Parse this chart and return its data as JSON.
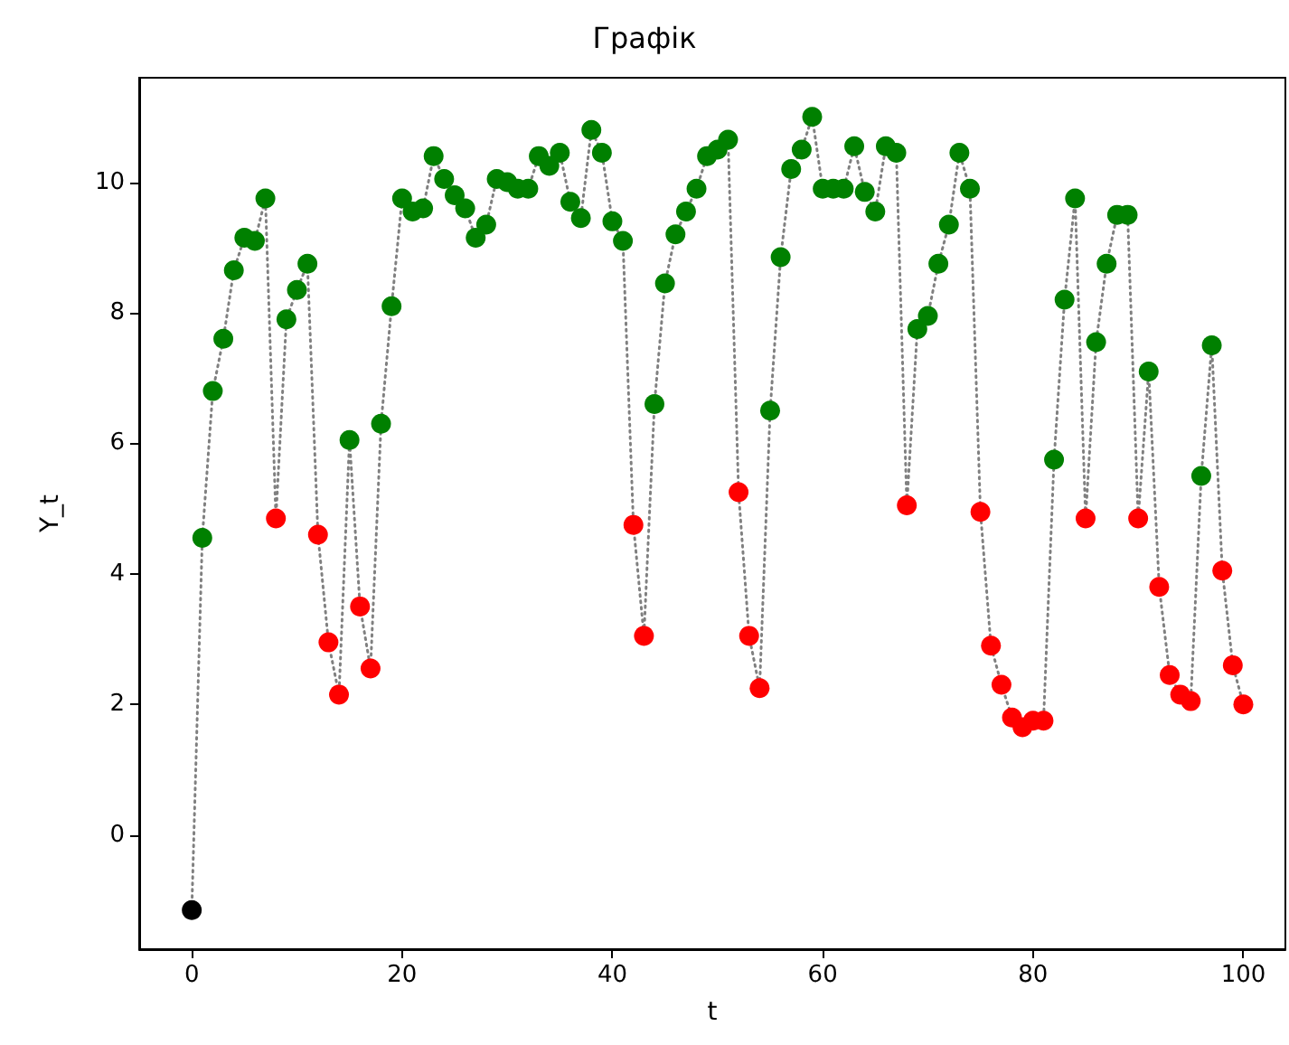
{
  "chart_data": {
    "type": "scatter",
    "title": "Графік",
    "xlabel": "t",
    "ylabel": "Y_t",
    "xlim": [
      -5,
      104
    ],
    "ylim": [
      -1.75,
      11.6
    ],
    "xticks": [
      0,
      20,
      40,
      60,
      80,
      100
    ],
    "yticks": [
      0,
      2,
      4,
      6,
      8,
      10
    ],
    "grid": false,
    "series": [
      {
        "type": "line",
        "color": "#808080",
        "line_style": "dotted",
        "marker": "none",
        "x": [
          0,
          1,
          2,
          3,
          4,
          5,
          6,
          7,
          8,
          9,
          10,
          11,
          12,
          13,
          14,
          15,
          16,
          17,
          18,
          19,
          20,
          21,
          22,
          23,
          24,
          25,
          26,
          27,
          28,
          29,
          30,
          31,
          32,
          33,
          34,
          35,
          36,
          37,
          38,
          39,
          40,
          41,
          42,
          43,
          44,
          45,
          46,
          47,
          48,
          49,
          50,
          51,
          52,
          53,
          54,
          55,
          56,
          57,
          58,
          59,
          60,
          61,
          62,
          63,
          64,
          65,
          66,
          67,
          68,
          69,
          70,
          71,
          72,
          73,
          74,
          75,
          76,
          77,
          78,
          79,
          80,
          81,
          82,
          83,
          84,
          85,
          86,
          87,
          88,
          89,
          90,
          91,
          92,
          93,
          94,
          95,
          96,
          97,
          98,
          99,
          100
        ],
        "values": [
          -1.15,
          4.55,
          6.8,
          7.6,
          8.65,
          9.15,
          9.1,
          9.75,
          4.85,
          7.9,
          8.35,
          8.75,
          4.6,
          2.95,
          2.15,
          6.05,
          3.5,
          2.55,
          6.3,
          8.1,
          9.75,
          9.55,
          9.6,
          10.4,
          10.05,
          9.8,
          9.6,
          9.15,
          9.35,
          10.05,
          10.0,
          9.9,
          9.9,
          10.4,
          10.25,
          10.45,
          9.7,
          9.45,
          10.8,
          10.45,
          9.4,
          9.1,
          4.75,
          3.05,
          6.6,
          8.45,
          9.2,
          9.55,
          9.9,
          10.4,
          10.5,
          10.65,
          5.25,
          3.05,
          2.25,
          6.5,
          8.85,
          10.2,
          10.5,
          11.0,
          9.9,
          9.9,
          9.9,
          10.55,
          9.85,
          9.55,
          10.55,
          10.45,
          5.05,
          7.75,
          7.95,
          8.75,
          9.35,
          10.45,
          9.9,
          4.95,
          2.9,
          2.3,
          1.8,
          1.65,
          1.75,
          1.75,
          5.75,
          8.2,
          9.75,
          4.85,
          7.55,
          8.75,
          9.5,
          9.5,
          4.85,
          7.1,
          3.8,
          2.45,
          2.15,
          2.05,
          5.5,
          7.5,
          4.05,
          2.6,
          2.0
        ]
      },
      {
        "color": "#000000",
        "marker": "circle",
        "x": [
          0
        ],
        "values": [
          -1.15
        ]
      },
      {
        "color": "#008000",
        "marker": "circle",
        "x": [
          1,
          2,
          3,
          4,
          5,
          6,
          7,
          9,
          10,
          11,
          15,
          18,
          19,
          20,
          21,
          22,
          23,
          24,
          25,
          26,
          27,
          28,
          29,
          30,
          31,
          32,
          33,
          34,
          35,
          36,
          37,
          38,
          39,
          40,
          41,
          44,
          45,
          46,
          47,
          48,
          49,
          50,
          51,
          55,
          56,
          57,
          58,
          59,
          60,
          61,
          62,
          63,
          64,
          65,
          66,
          67,
          69,
          70,
          71,
          72,
          73,
          74,
          82,
          83,
          84,
          86,
          87,
          88,
          89,
          91,
          96,
          97
        ],
        "values": [
          4.55,
          6.8,
          7.6,
          8.65,
          9.15,
          9.1,
          9.75,
          7.9,
          8.35,
          8.75,
          6.05,
          6.3,
          8.1,
          9.75,
          9.55,
          9.6,
          10.4,
          10.05,
          9.8,
          9.6,
          9.15,
          9.35,
          10.05,
          10.0,
          9.9,
          9.9,
          10.4,
          10.25,
          10.45,
          9.7,
          9.45,
          10.8,
          10.45,
          9.4,
          9.1,
          6.6,
          8.45,
          9.2,
          9.55,
          9.9,
          10.4,
          10.5,
          10.65,
          6.5,
          8.85,
          10.2,
          10.5,
          11.0,
          9.9,
          9.9,
          9.9,
          10.55,
          9.85,
          9.55,
          10.55,
          10.45,
          7.75,
          7.95,
          8.75,
          9.35,
          10.45,
          9.9,
          5.75,
          8.2,
          9.75,
          7.55,
          8.75,
          9.5,
          9.5,
          7.1,
          5.5,
          7.5
        ]
      },
      {
        "color": "#ff0000",
        "marker": "circle",
        "x": [
          8,
          12,
          13,
          14,
          16,
          17,
          42,
          43,
          52,
          53,
          54,
          68,
          75,
          76,
          77,
          78,
          79,
          80,
          81,
          85,
          90,
          92,
          93,
          94,
          95,
          98,
          99,
          100
        ],
        "values": [
          4.85,
          4.6,
          2.95,
          2.15,
          3.5,
          2.55,
          4.75,
          3.05,
          5.25,
          3.05,
          2.25,
          5.05,
          4.95,
          2.9,
          2.3,
          1.8,
          1.65,
          1.75,
          1.75,
          4.85,
          4.85,
          3.8,
          2.45,
          2.15,
          2.05,
          4.05,
          2.6,
          2.0
        ]
      }
    ]
  }
}
